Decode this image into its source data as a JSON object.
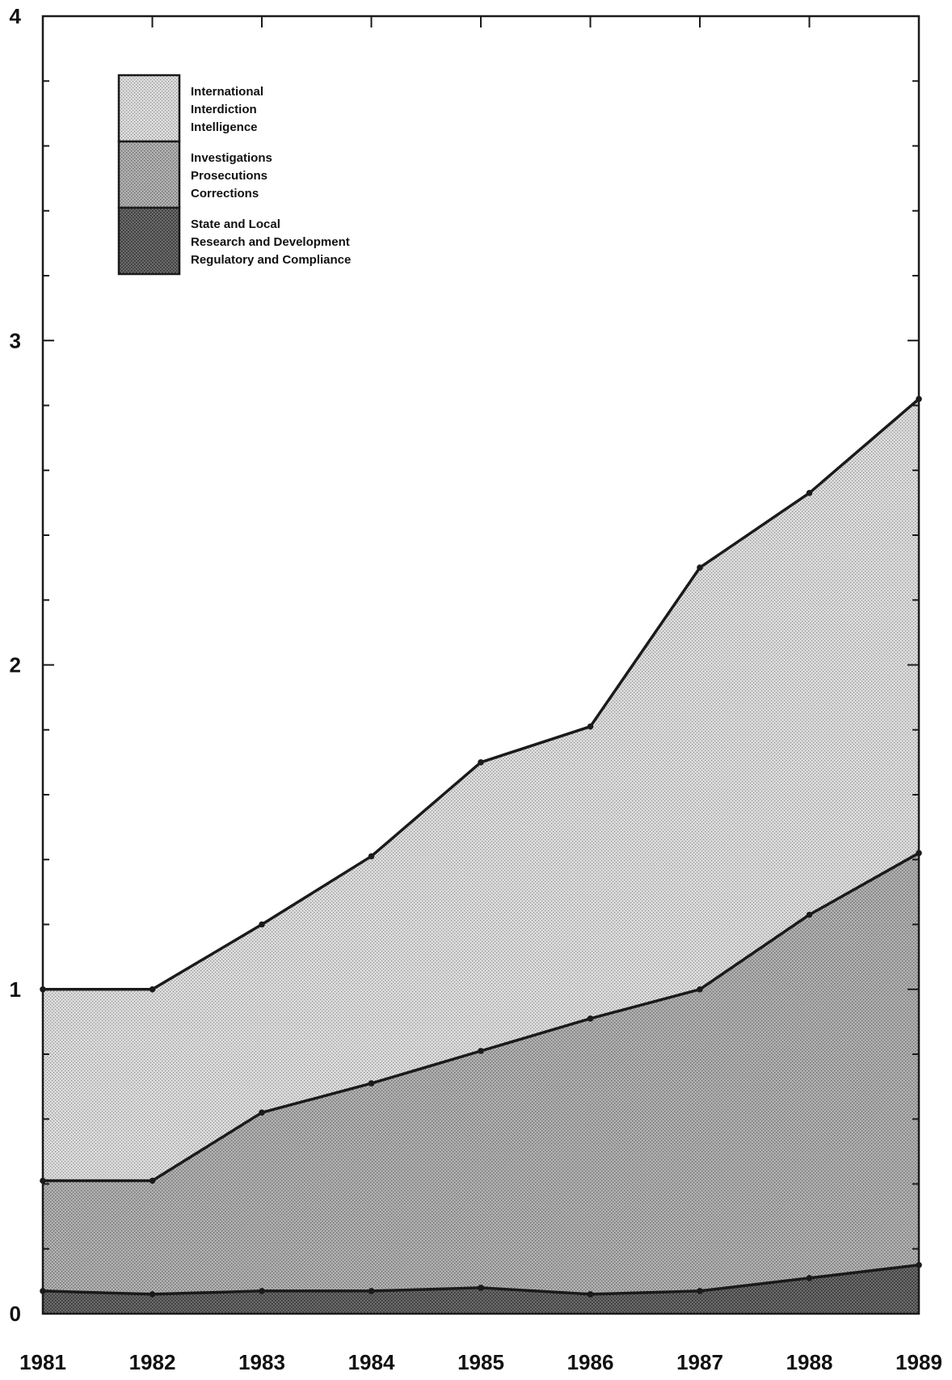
{
  "chart_data": {
    "type": "area",
    "stacked": true,
    "title": "",
    "xlabel": "",
    "ylabel": "",
    "x": [
      "1981",
      "1982",
      "1983",
      "1984",
      "1985",
      "1986",
      "1987",
      "1988",
      "1989"
    ],
    "ylim": [
      0,
      4
    ],
    "yticks": [
      "0",
      "1",
      "2",
      "3",
      "4"
    ],
    "grid": false,
    "legend_position": "top-left",
    "series": [
      {
        "key": "state_research_regulatory",
        "legend_lines": [
          "State and Local",
          "Research and Development",
          "Regulatory and Compliance"
        ],
        "values": [
          0.07,
          0.06,
          0.07,
          0.07,
          0.08,
          0.06,
          0.07,
          0.11,
          0.15
        ],
        "color": "#555555"
      },
      {
        "key": "investigations_prosecutions_corrections",
        "legend_lines": [
          "Investigations",
          "Prosecutions",
          "Corrections"
        ],
        "values": [
          0.34,
          0.35,
          0.55,
          0.64,
          0.73,
          0.85,
          0.93,
          1.12,
          1.27
        ],
        "color": "#a3a3a3"
      },
      {
        "key": "international_interdiction_intelligence",
        "legend_lines": [
          "International",
          "Interdiction",
          "Intelligence"
        ],
        "values": [
          0.59,
          0.59,
          0.58,
          0.7,
          0.89,
          0.9,
          1.3,
          1.3,
          1.4
        ],
        "color": "#d4d4d4"
      }
    ]
  }
}
